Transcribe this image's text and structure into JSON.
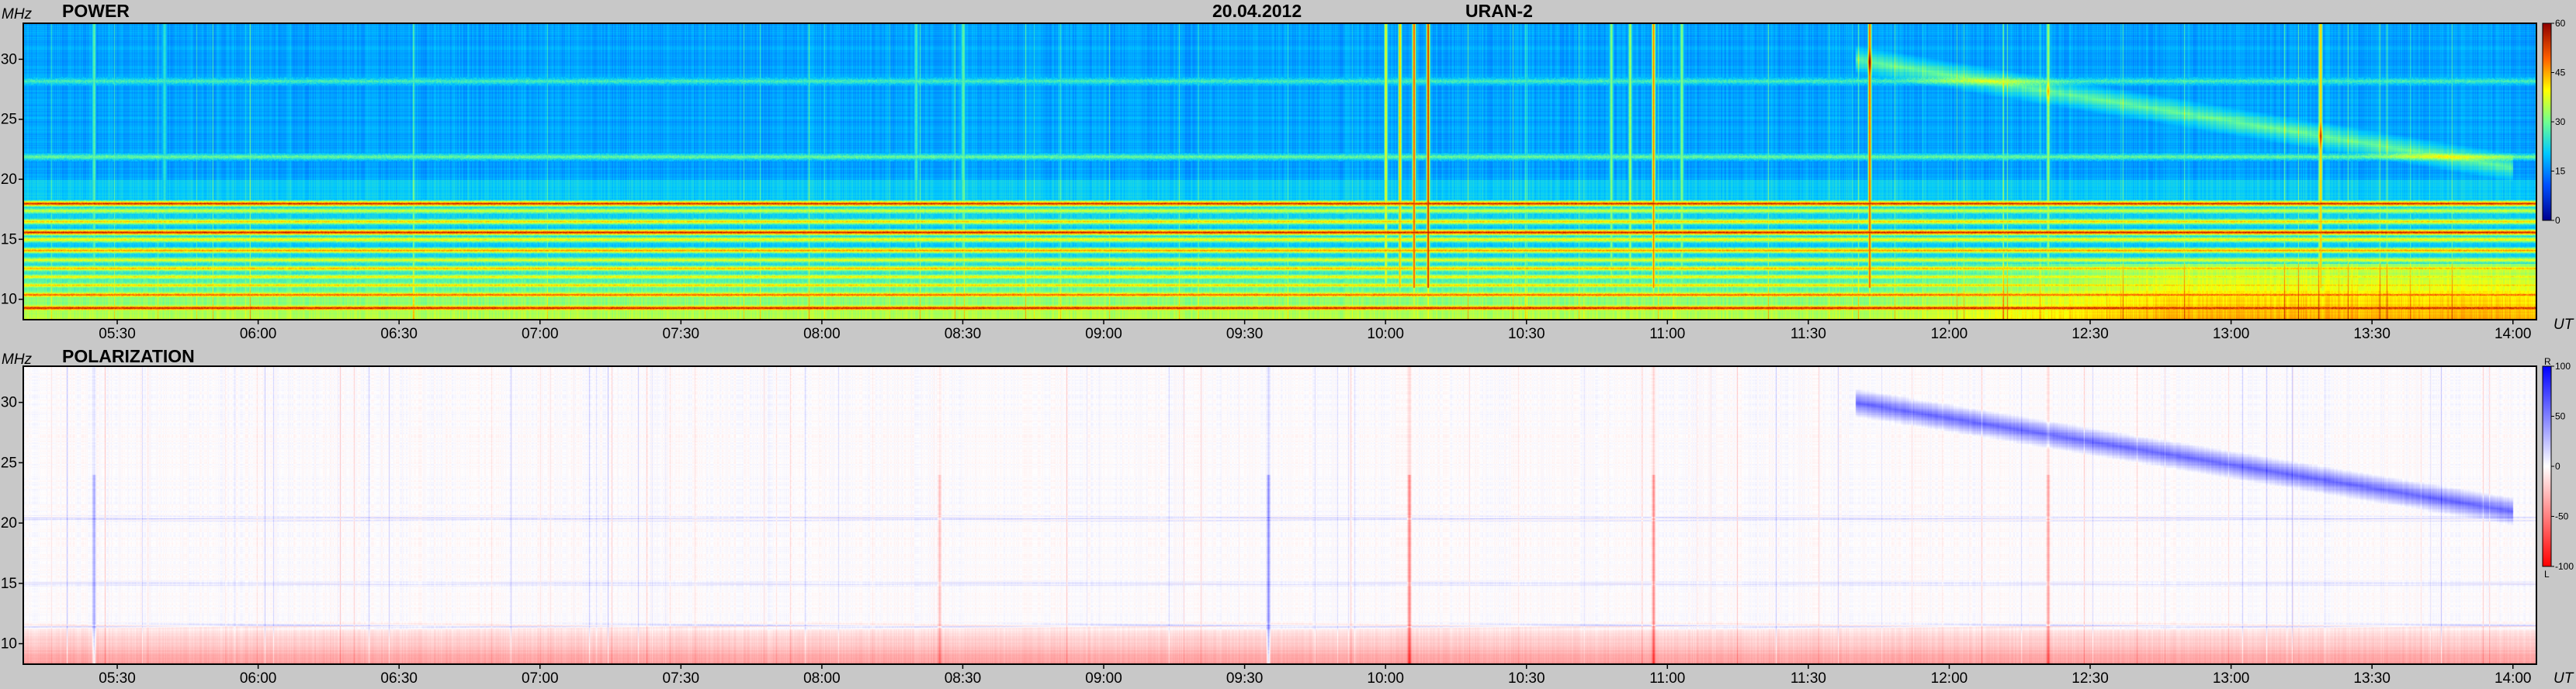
{
  "header": {
    "date": "20.04.2012",
    "instrument": "URAN-2"
  },
  "chart_data": [
    {
      "type": "heatmap",
      "title": "POWER",
      "ylabel": "MHz",
      "xlabel": "UT",
      "ylim": [
        8.3,
        33
      ],
      "xlim": [
        "05:10",
        "14:05"
      ],
      "x_ticks": [
        "05:30",
        "06:00",
        "06:30",
        "07:00",
        "07:30",
        "08:00",
        "08:30",
        "09:00",
        "09:30",
        "10:00",
        "10:30",
        "11:00",
        "11:30",
        "12:00",
        "12:30",
        "13:00",
        "13:30",
        "14:00"
      ],
      "y_ticks": [
        10,
        15,
        20,
        25,
        30
      ],
      "colorbar": {
        "ticks": [
          0,
          15,
          30,
          45,
          60
        ],
        "range": [
          0,
          60
        ]
      },
      "colorscale": [
        "#00008f",
        "#0050ff",
        "#00c8ff",
        "#6fff90",
        "#ffff00",
        "#ff6000",
        "#8f0000"
      ],
      "features": {
        "background_level": 17,
        "horizontal_bands_mhz": [
          {
            "f": 9.3,
            "level": 58
          },
          {
            "f": 10.4,
            "level": 52
          },
          {
            "f": 11.2,
            "level": 44
          },
          {
            "f": 11.9,
            "level": 42
          },
          {
            "f": 12.6,
            "level": 46
          },
          {
            "f": 13.3,
            "level": 40
          },
          {
            "f": 14.1,
            "level": 48
          },
          {
            "f": 15.0,
            "level": 42
          },
          {
            "f": 15.6,
            "level": 57
          },
          {
            "f": 16.5,
            "level": 44
          },
          {
            "f": 17.4,
            "level": 38
          },
          {
            "f": 18.0,
            "level": 56
          },
          {
            "f": 21.9,
            "level": 30
          },
          {
            "f": 28.2,
            "level": 27
          }
        ],
        "vertical_bursts_ut": [
          {
            "t": "05:25",
            "level": 30
          },
          {
            "t": "05:40",
            "level": 26
          },
          {
            "t": "08:20",
            "level": 28
          },
          {
            "t": "08:30",
            "level": 30
          },
          {
            "t": "10:00",
            "level": 42
          },
          {
            "t": "10:03",
            "level": 48
          },
          {
            "t": "10:06",
            "level": 56
          },
          {
            "t": "10:09",
            "level": 60
          },
          {
            "t": "10:48",
            "level": 34
          },
          {
            "t": "10:52",
            "level": 36
          },
          {
            "t": "10:57",
            "level": 52
          },
          {
            "t": "11:03",
            "level": 34
          },
          {
            "t": "11:43",
            "level": 56
          },
          {
            "t": "12:21",
            "level": 36
          },
          {
            "t": "13:19",
            "level": 48
          }
        ],
        "drifting_emission": {
          "from": [
            "11:40",
            30
          ],
          "to": [
            "14:00",
            21
          ]
        }
      }
    },
    {
      "type": "heatmap",
      "title": "POLARIZATION",
      "ylabel": "MHz",
      "xlabel": "UT",
      "ylim": [
        8.3,
        33
      ],
      "xlim": [
        "05:10",
        "14:05"
      ],
      "x_ticks": [
        "05:30",
        "06:00",
        "06:30",
        "07:00",
        "07:30",
        "08:00",
        "08:30",
        "09:00",
        "09:30",
        "10:00",
        "10:30",
        "11:00",
        "11:30",
        "12:00",
        "12:30",
        "13:00",
        "13:30",
        "14:00"
      ],
      "y_ticks": [
        10,
        15,
        20,
        25,
        30
      ],
      "colorbar": {
        "ticks": [
          100,
          50,
          0,
          -50,
          -100
        ],
        "range": [
          -100,
          100
        ],
        "top_label": "R",
        "bottom_label": "L"
      },
      "colorscale": [
        "#ff0000",
        "#ffffff",
        "#0000ff"
      ],
      "features": {
        "background_level": 0,
        "low_freq_left_polarization": {
          "f_below": 12,
          "level": -40
        },
        "horizontal_bands_mhz": [
          {
            "f": 11.5,
            "level": 30
          },
          {
            "f": 15.0,
            "level": 20
          },
          {
            "f": 17.5,
            "level": -20
          },
          {
            "f": 20.4,
            "level": 25
          }
        ],
        "vertical_bursts_ut": [
          {
            "t": "05:25",
            "level": 40
          },
          {
            "t": "08:25",
            "level": -30
          },
          {
            "t": "09:35",
            "level": 50
          },
          {
            "t": "10:05",
            "level": -60
          },
          {
            "t": "10:57",
            "level": -50
          },
          {
            "t": "12:21",
            "level": -40
          }
        ],
        "drifting_emission": {
          "from": [
            "11:40",
            30
          ],
          "to": [
            "14:00",
            21
          ],
          "level": 60
        }
      }
    }
  ]
}
